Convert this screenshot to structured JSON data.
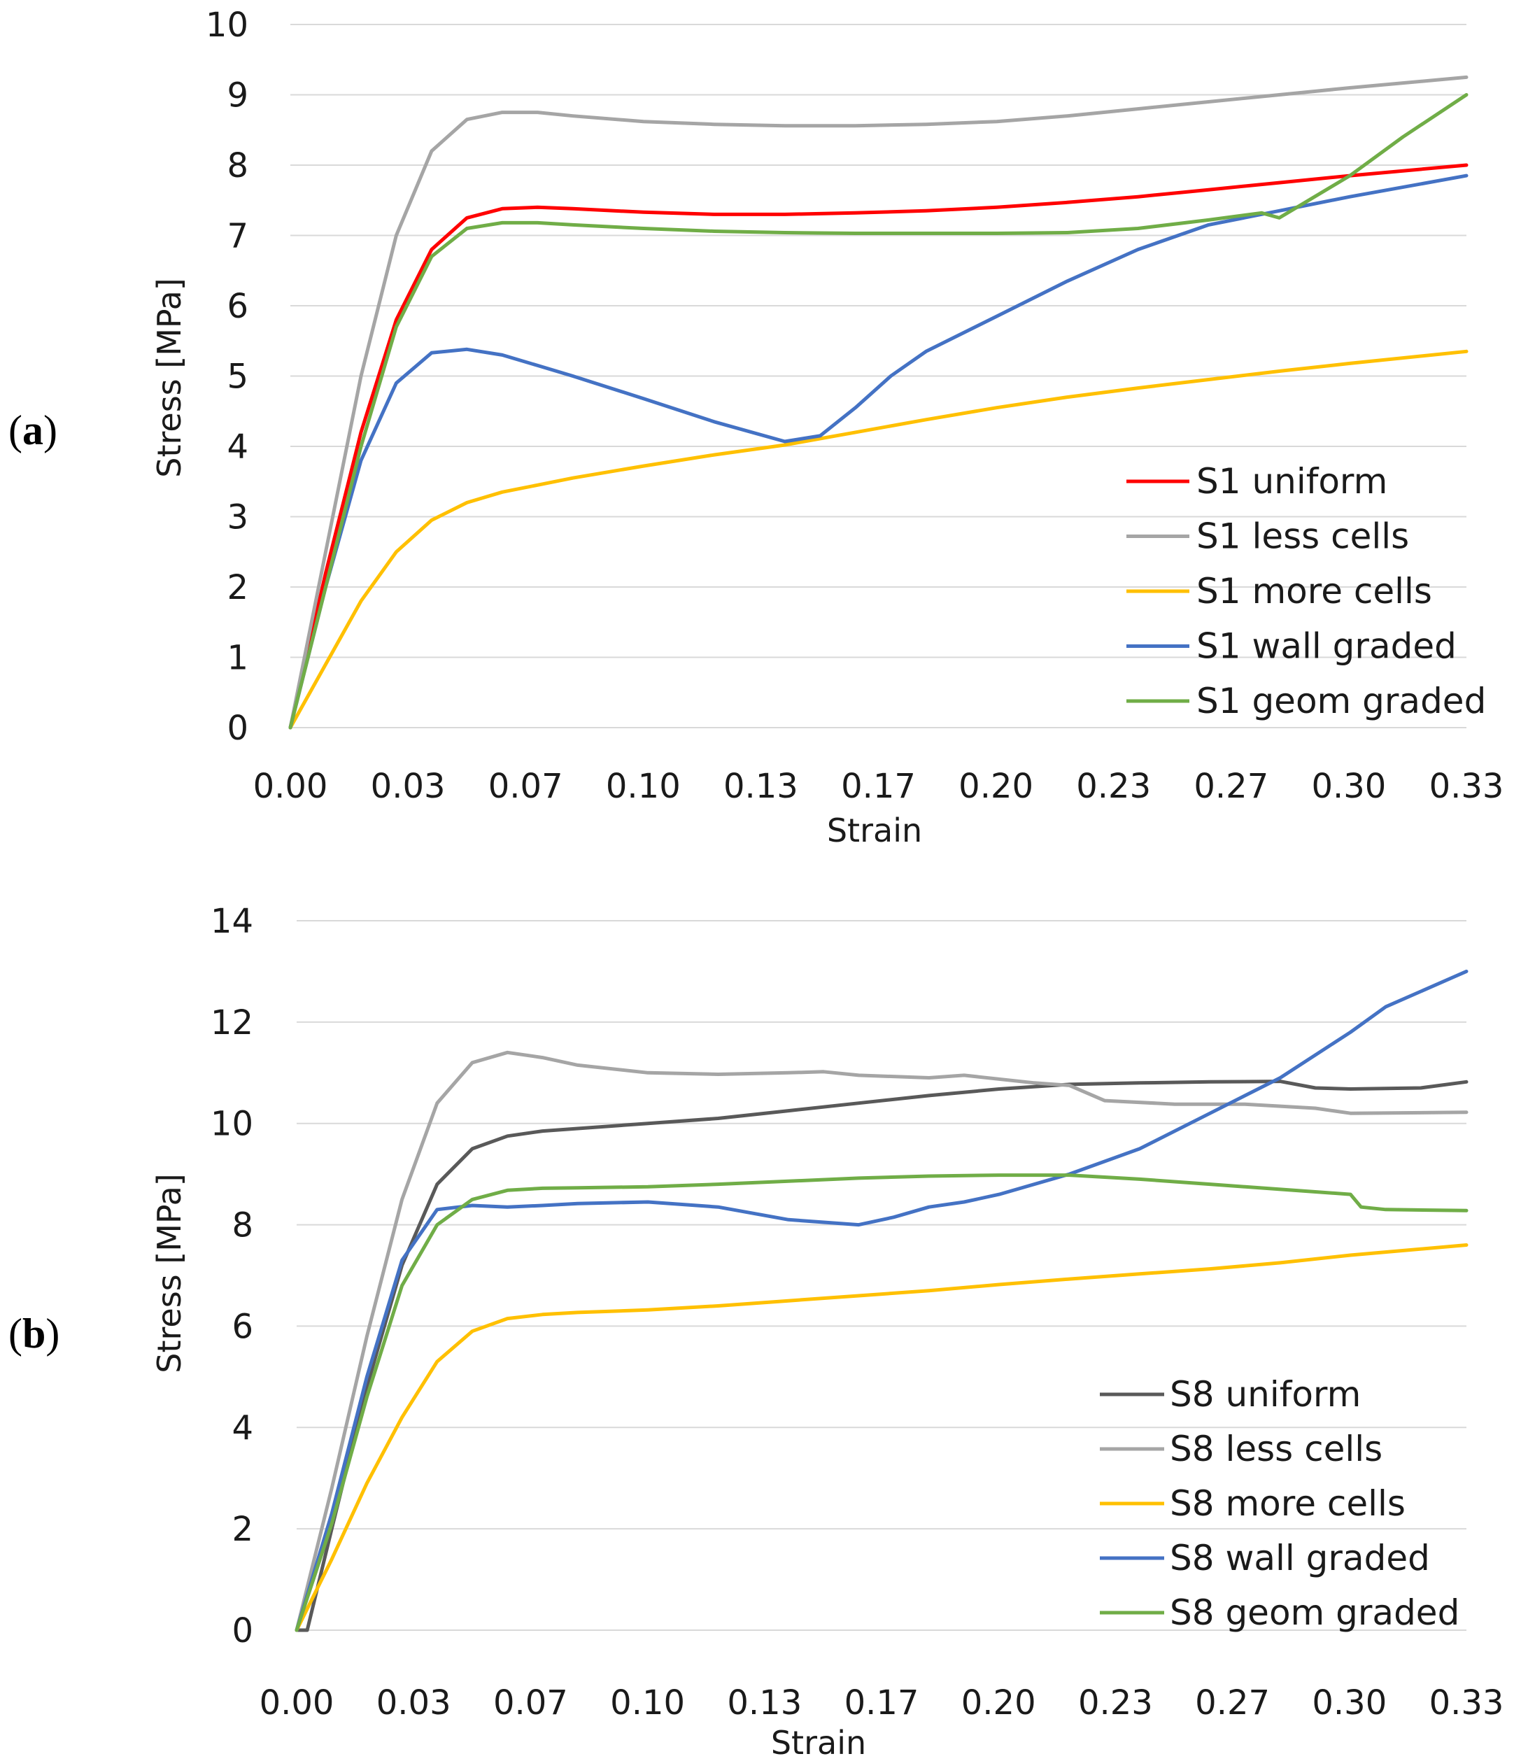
{
  "chart_data": [
    {
      "panel_label": "a",
      "type": "line",
      "xlabel": "Strain",
      "ylabel": "Stress [MPa]",
      "xlim": [
        0,
        0.333
      ],
      "ylim": [
        0,
        10
      ],
      "xticks": [
        "0.00",
        "0.03",
        "0.07",
        "0.10",
        "0.13",
        "0.17",
        "0.20",
        "0.23",
        "0.27",
        "0.30",
        "0.33"
      ],
      "yticks": [
        "0",
        "1",
        "2",
        "3",
        "4",
        "5",
        "6",
        "7",
        "8",
        "9",
        "10"
      ],
      "grid": true,
      "legend_position": "bottom-right",
      "series": [
        {
          "name": "S1 uniform",
          "color": "#ff0000",
          "x": [
            0,
            0.01,
            0.02,
            0.03,
            0.04,
            0.05,
            0.06,
            0.07,
            0.08,
            0.1,
            0.12,
            0.14,
            0.16,
            0.18,
            0.2,
            0.22,
            0.24,
            0.26,
            0.28,
            0.3,
            0.333
          ],
          "y": [
            0,
            2.2,
            4.2,
            5.8,
            6.8,
            7.25,
            7.38,
            7.4,
            7.38,
            7.33,
            7.3,
            7.3,
            7.32,
            7.35,
            7.4,
            7.47,
            7.55,
            7.65,
            7.75,
            7.85,
            8.0
          ]
        },
        {
          "name": "S1 less cells",
          "color": "#a5a5a5",
          "x": [
            0,
            0.01,
            0.02,
            0.03,
            0.04,
            0.05,
            0.06,
            0.07,
            0.08,
            0.1,
            0.12,
            0.14,
            0.16,
            0.18,
            0.2,
            0.22,
            0.24,
            0.26,
            0.28,
            0.3,
            0.333
          ],
          "y": [
            0,
            2.5,
            5.0,
            7.0,
            8.2,
            8.65,
            8.75,
            8.75,
            8.7,
            8.62,
            8.58,
            8.56,
            8.56,
            8.58,
            8.62,
            8.7,
            8.8,
            8.9,
            9.0,
            9.1,
            9.25
          ]
        },
        {
          "name": "S1 more cells",
          "color": "#ffc000",
          "x": [
            0,
            0.01,
            0.02,
            0.03,
            0.04,
            0.05,
            0.06,
            0.07,
            0.08,
            0.1,
            0.12,
            0.14,
            0.16,
            0.18,
            0.2,
            0.22,
            0.24,
            0.26,
            0.28,
            0.3,
            0.333
          ],
          "y": [
            0,
            0.9,
            1.8,
            2.5,
            2.95,
            3.2,
            3.35,
            3.45,
            3.55,
            3.72,
            3.88,
            4.02,
            4.2,
            4.38,
            4.55,
            4.7,
            4.83,
            4.95,
            5.07,
            5.18,
            5.35
          ]
        },
        {
          "name": "S1 wall graded",
          "color": "#4472c4",
          "x": [
            0,
            0.01,
            0.02,
            0.03,
            0.04,
            0.05,
            0.06,
            0.07,
            0.08,
            0.1,
            0.12,
            0.14,
            0.15,
            0.16,
            0.17,
            0.18,
            0.2,
            0.22,
            0.24,
            0.26,
            0.28,
            0.3,
            0.333
          ],
          "y": [
            0,
            2.0,
            3.8,
            4.9,
            5.33,
            5.38,
            5.3,
            5.15,
            5.0,
            4.68,
            4.35,
            4.07,
            4.15,
            4.55,
            5.0,
            5.35,
            5.85,
            6.35,
            6.8,
            7.15,
            7.35,
            7.55,
            7.85
          ]
        },
        {
          "name": "S1 geom graded",
          "color": "#70ad47",
          "x": [
            0,
            0.01,
            0.02,
            0.03,
            0.04,
            0.05,
            0.06,
            0.07,
            0.08,
            0.1,
            0.12,
            0.14,
            0.16,
            0.18,
            0.2,
            0.22,
            0.24,
            0.26,
            0.275,
            0.28,
            0.285,
            0.3,
            0.315,
            0.333
          ],
          "y": [
            0,
            2.0,
            4.0,
            5.7,
            6.7,
            7.1,
            7.18,
            7.18,
            7.15,
            7.1,
            7.06,
            7.04,
            7.03,
            7.03,
            7.03,
            7.04,
            7.1,
            7.22,
            7.32,
            7.25,
            7.4,
            7.85,
            8.4,
            9.0
          ]
        }
      ]
    },
    {
      "panel_label": "b",
      "type": "line",
      "xlabel": "Strain",
      "ylabel": "Stress [MPa]",
      "xlim": [
        0,
        0.333
      ],
      "ylim": [
        0,
        14
      ],
      "xticks": [
        "0.00",
        "0.03",
        "0.07",
        "0.10",
        "0.13",
        "0.17",
        "0.20",
        "0.23",
        "0.27",
        "0.30",
        "0.33"
      ],
      "yticks": [
        "0",
        "2",
        "4",
        "6",
        "8",
        "10",
        "12",
        "14"
      ],
      "grid": true,
      "legend_position": "bottom-right",
      "series": [
        {
          "name": "S8 uniform",
          "color": "#595959",
          "x": [
            0,
            0.003,
            0.01,
            0.02,
            0.03,
            0.04,
            0.05,
            0.06,
            0.07,
            0.08,
            0.1,
            0.12,
            0.14,
            0.16,
            0.18,
            0.2,
            0.22,
            0.24,
            0.26,
            0.28,
            0.29,
            0.3,
            0.32,
            0.333
          ],
          "y": [
            0,
            0,
            2.0,
            4.8,
            7.2,
            8.8,
            9.5,
            9.75,
            9.85,
            9.9,
            10.0,
            10.1,
            10.25,
            10.4,
            10.55,
            10.68,
            10.77,
            10.8,
            10.82,
            10.83,
            10.7,
            10.68,
            10.7,
            10.82
          ]
        },
        {
          "name": "S8 less cells",
          "color": "#a5a5a5",
          "x": [
            0,
            0.01,
            0.02,
            0.03,
            0.04,
            0.05,
            0.06,
            0.07,
            0.08,
            0.1,
            0.12,
            0.14,
            0.15,
            0.16,
            0.18,
            0.19,
            0.21,
            0.22,
            0.23,
            0.25,
            0.27,
            0.29,
            0.3,
            0.333
          ],
          "y": [
            0,
            2.8,
            5.8,
            8.5,
            10.4,
            11.2,
            11.4,
            11.3,
            11.15,
            11.0,
            10.97,
            11.0,
            11.02,
            10.95,
            10.9,
            10.95,
            10.8,
            10.75,
            10.45,
            10.38,
            10.38,
            10.3,
            10.2,
            10.22
          ]
        },
        {
          "name": "S8 more cells",
          "color": "#ffc000",
          "x": [
            0,
            0.01,
            0.02,
            0.03,
            0.04,
            0.05,
            0.06,
            0.07,
            0.08,
            0.1,
            0.12,
            0.14,
            0.16,
            0.18,
            0.2,
            0.22,
            0.24,
            0.26,
            0.28,
            0.3,
            0.333
          ],
          "y": [
            0,
            1.4,
            2.9,
            4.2,
            5.3,
            5.9,
            6.15,
            6.23,
            6.27,
            6.32,
            6.4,
            6.5,
            6.6,
            6.7,
            6.82,
            6.93,
            7.03,
            7.13,
            7.25,
            7.4,
            7.6
          ]
        },
        {
          "name": "S8 wall graded",
          "color": "#4472c4",
          "x": [
            0,
            0.01,
            0.02,
            0.03,
            0.04,
            0.05,
            0.06,
            0.07,
            0.08,
            0.1,
            0.12,
            0.14,
            0.16,
            0.17,
            0.18,
            0.19,
            0.2,
            0.22,
            0.24,
            0.26,
            0.28,
            0.3,
            0.31,
            0.333
          ],
          "y": [
            0,
            2.3,
            5.0,
            7.3,
            8.3,
            8.38,
            8.35,
            8.38,
            8.42,
            8.45,
            8.35,
            8.1,
            8.0,
            8.15,
            8.35,
            8.45,
            8.6,
            9.0,
            9.5,
            10.2,
            10.9,
            11.8,
            12.3,
            13.0
          ]
        },
        {
          "name": "S8 geom graded",
          "color": "#70ad47",
          "x": [
            0,
            0.01,
            0.02,
            0.03,
            0.04,
            0.05,
            0.06,
            0.07,
            0.08,
            0.1,
            0.12,
            0.14,
            0.16,
            0.18,
            0.2,
            0.22,
            0.24,
            0.26,
            0.28,
            0.3,
            0.303,
            0.31,
            0.333
          ],
          "y": [
            0,
            2.1,
            4.6,
            6.8,
            8.0,
            8.5,
            8.68,
            8.72,
            8.73,
            8.75,
            8.8,
            8.86,
            8.92,
            8.96,
            8.98,
            8.98,
            8.9,
            8.8,
            8.7,
            8.6,
            8.35,
            8.3,
            8.28
          ]
        }
      ]
    }
  ]
}
